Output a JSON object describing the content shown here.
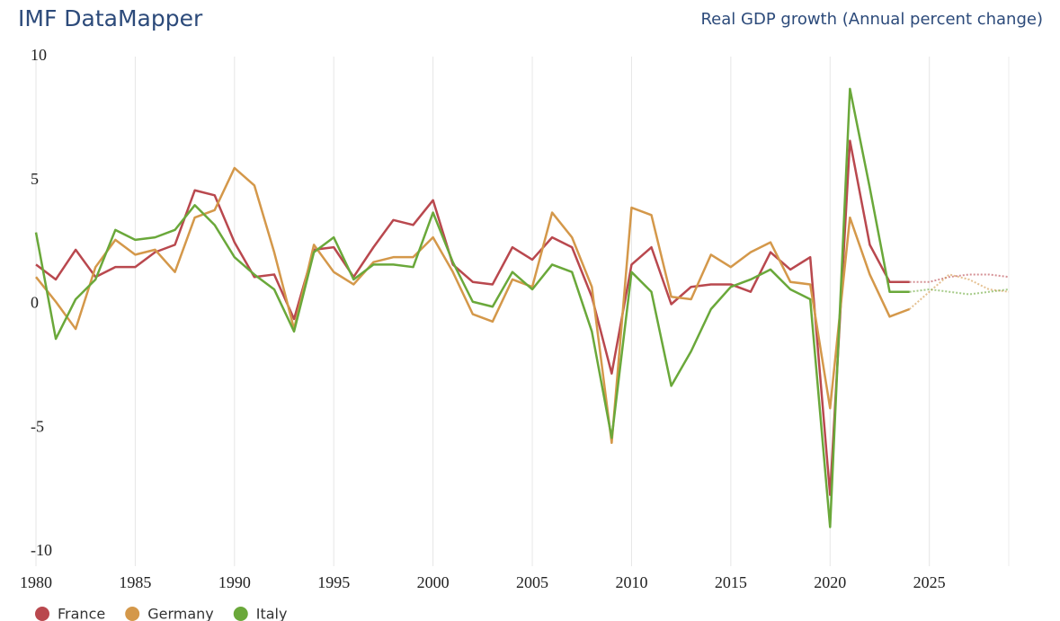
{
  "chart_data": {
    "type": "line",
    "title": "IMF DataMapper",
    "subtitle": "Real GDP growth (Annual percent change)",
    "x": [
      1980,
      1981,
      1982,
      1983,
      1984,
      1985,
      1986,
      1987,
      1988,
      1989,
      1990,
      1991,
      1992,
      1993,
      1994,
      1995,
      1996,
      1997,
      1998,
      1999,
      2000,
      2001,
      2002,
      2003,
      2004,
      2005,
      2006,
      2007,
      2008,
      2009,
      2010,
      2011,
      2012,
      2013,
      2014,
      2015,
      2016,
      2017,
      2018,
      2019,
      2020,
      2021,
      2022,
      2023,
      2024,
      2025,
      2026,
      2027,
      2028,
      2029
    ],
    "projection_start": 2024,
    "series": [
      {
        "name": "France",
        "color": "#b9484e",
        "values": [
          1.6,
          1.0,
          2.2,
          1.1,
          1.5,
          1.5,
          2.1,
          2.4,
          4.6,
          4.4,
          2.5,
          1.1,
          1.2,
          -0.6,
          2.2,
          2.3,
          1.1,
          2.3,
          3.4,
          3.2,
          4.2,
          1.6,
          0.9,
          0.8,
          2.3,
          1.8,
          2.7,
          2.3,
          0.3,
          -2.8,
          1.6,
          2.3,
          0.0,
          0.7,
          0.8,
          0.8,
          0.5,
          2.1,
          1.4,
          1.9,
          -7.7,
          6.6,
          2.4,
          0.9,
          0.9,
          0.9,
          1.1,
          1.2,
          1.2,
          1.1
        ]
      },
      {
        "name": "Germany",
        "color": "#d4984a",
        "values": [
          1.1,
          0.1,
          -1.0,
          1.5,
          2.6,
          2.0,
          2.2,
          1.3,
          3.5,
          3.8,
          5.5,
          4.8,
          2.1,
          -1.0,
          2.4,
          1.3,
          0.8,
          1.7,
          1.9,
          1.9,
          2.7,
          1.3,
          -0.4,
          -0.7,
          1.0,
          0.7,
          3.7,
          2.7,
          0.7,
          -5.6,
          3.9,
          3.6,
          0.3,
          0.2,
          2.0,
          1.5,
          2.1,
          2.5,
          0.9,
          0.8,
          -4.2,
          3.5,
          1.2,
          -0.5,
          -0.2,
          0.5,
          1.2,
          1.0,
          0.6,
          0.5
        ]
      },
      {
        "name": "Italy",
        "color": "#6aa83a",
        "values": [
          2.9,
          -1.4,
          0.2,
          1.0,
          3.0,
          2.6,
          2.7,
          3.0,
          4.0,
          3.2,
          1.9,
          1.2,
          0.6,
          -1.1,
          2.1,
          2.7,
          1.0,
          1.6,
          1.6,
          1.5,
          3.7,
          1.7,
          0.1,
          -0.1,
          1.3,
          0.6,
          1.6,
          1.3,
          -1.1,
          -5.4,
          1.3,
          0.5,
          -3.3,
          -1.9,
          -0.2,
          0.7,
          1.0,
          1.4,
          0.6,
          0.2,
          -9.0,
          8.7,
          4.7,
          0.5,
          0.5,
          0.6,
          0.5,
          0.4,
          0.5,
          0.6
        ]
      }
    ],
    "xlim": [
      1980,
      2029
    ],
    "xticks": [
      1980,
      1985,
      1990,
      1995,
      2000,
      2005,
      2010,
      2015,
      2020,
      2025
    ],
    "ylim": [
      -10,
      10
    ],
    "yticks": [
      -10,
      -5,
      0,
      5,
      10
    ],
    "grid": true,
    "legend": "bottom-left"
  }
}
